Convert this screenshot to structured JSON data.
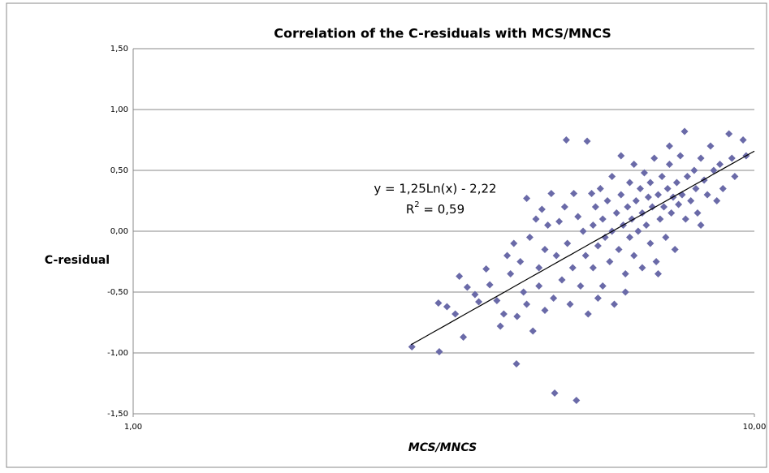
{
  "chart_data": {
    "type": "scatter",
    "title": "Correlation of the C-residuals with MCS/MNCS",
    "x_label": "MCS/MNCS",
    "y_label": "C-residual",
    "xscale": "log",
    "grid": true,
    "marker": "diamond",
    "color": "#6a6aa8",
    "xlim": [
      1,
      10
    ],
    "ylim": [
      -1.5,
      1.5
    ],
    "xticks": [
      {
        "value": 1,
        "label": "1,00"
      },
      {
        "value": 10,
        "label": "10,00"
      }
    ],
    "yticks": [
      {
        "value": -1.5,
        "label": "-1,50"
      },
      {
        "value": -1,
        "label": "-1,00"
      },
      {
        "value": -0.5,
        "label": "-0,50"
      },
      {
        "value": 0,
        "label": "0,00"
      },
      {
        "value": 0.5,
        "label": "0,50"
      },
      {
        "value": 1,
        "label": "1,00"
      },
      {
        "value": 1.5,
        "label": "1,50"
      }
    ],
    "trendline": {
      "equation": "y = 1,25Ln(x) - 2,22",
      "r2_label": "R",
      "r2_sup": "2",
      "r2_value": " = 0,59",
      "a": 1.25,
      "b": -2.22,
      "xrange": [
        2.8,
        10
      ]
    },
    "x": [
      2.81,
      3.11,
      3.1,
      3.4,
      3.2,
      3.3,
      3.35,
      3.45,
      3.55,
      3.6,
      3.7,
      3.75,
      3.85,
      3.9,
      3.95,
      4.0,
      4.05,
      4.1,
      4.14,
      4.15,
      4.2,
      4.25,
      4.3,
      4.3,
      4.35,
      4.4,
      4.45,
      4.5,
      4.5,
      4.55,
      4.6,
      4.6,
      4.65,
      4.71,
      4.75,
      4.77,
      4.8,
      4.85,
      4.9,
      4.95,
      4.98,
      5.0,
      5.05,
      5.12,
      5.1,
      5.17,
      5.2,
      5.25,
      5.3,
      5.38,
      5.35,
      5.4,
      5.47,
      5.5,
      5.5,
      5.55,
      5.6,
      5.65,
      5.7,
      5.7,
      5.75,
      5.8,
      5.85,
      5.9,
      5.9,
      5.95,
      6.0,
      6.05,
      6.1,
      6.1,
      6.15,
      6.2,
      6.25,
      6.3,
      6.3,
      6.35,
      6.4,
      6.4,
      6.45,
      6.5,
      6.55,
      6.6,
      6.6,
      6.65,
      6.7,
      6.75,
      6.8,
      6.8,
      6.85,
      6.9,
      6.95,
      7.0,
      7.05,
      7.1,
      7.15,
      7.2,
      7.25,
      7.3,
      7.35,
      7.4,
      7.45,
      7.5,
      7.55,
      7.6,
      7.65,
      7.72,
      7.75,
      7.8,
      7.9,
      8.0,
      8.05,
      8.1,
      8.2,
      8.3,
      8.4,
      8.5,
      8.6,
      8.7,
      8.8,
      8.9,
      9.1,
      9.2,
      9.3,
      9.59,
      9.7,
      7.0,
      6.2,
      5.6,
      8.2,
      7.3
    ],
    "values": [
      -0.95,
      -0.99,
      -0.59,
      -0.87,
      -0.62,
      -0.68,
      -0.37,
      -0.46,
      -0.52,
      -0.58,
      -0.31,
      -0.44,
      -0.57,
      -0.78,
      -0.68,
      -0.2,
      -0.35,
      -0.1,
      -1.09,
      -0.7,
      -0.25,
      -0.5,
      0.27,
      -0.6,
      -0.05,
      -0.82,
      0.1,
      -0.3,
      -0.45,
      0.18,
      -0.65,
      -0.15,
      0.05,
      0.31,
      -0.55,
      -1.33,
      -0.2,
      0.08,
      -0.4,
      0.2,
      0.75,
      -0.1,
      -0.6,
      0.31,
      -0.3,
      -1.39,
      0.12,
      -0.45,
      0.0,
      0.74,
      -0.2,
      -0.68,
      0.31,
      0.05,
      -0.3,
      0.2,
      -0.12,
      0.35,
      -0.45,
      0.1,
      -0.05,
      0.25,
      -0.25,
      0.45,
      0.0,
      -0.6,
      0.15,
      -0.15,
      0.3,
      0.62,
      0.05,
      -0.35,
      0.2,
      -0.05,
      0.4,
      0.1,
      0.55,
      -0.2,
      0.25,
      0.0,
      0.35,
      -0.3,
      0.15,
      0.48,
      0.05,
      0.28,
      -0.1,
      0.4,
      0.2,
      0.6,
      -0.25,
      0.3,
      0.1,
      0.45,
      0.2,
      -0.05,
      0.35,
      0.55,
      0.15,
      0.28,
      -0.15,
      0.4,
      0.22,
      0.62,
      0.3,
      0.82,
      0.1,
      0.45,
      0.25,
      0.5,
      0.35,
      0.15,
      0.6,
      0.42,
      0.3,
      0.7,
      0.5,
      0.25,
      0.55,
      0.35,
      0.8,
      0.6,
      0.45,
      0.75,
      0.62,
      -0.35,
      -0.5,
      -0.55,
      0.05,
      0.7
    ]
  }
}
